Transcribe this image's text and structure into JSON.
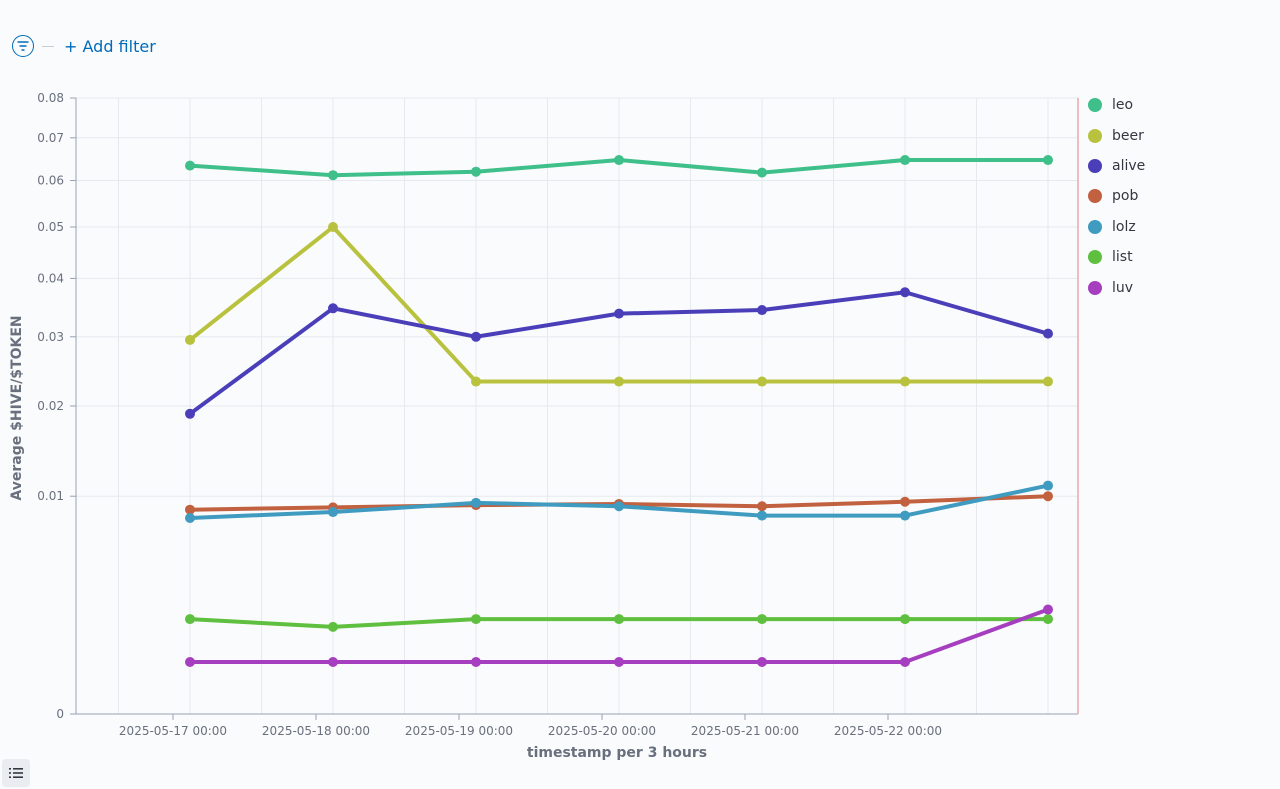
{
  "filter_bar": {
    "add_filter_label": "+ Add filter"
  },
  "icons": {
    "filter": "filter-icon",
    "legend_toggle": "list-icon"
  },
  "chart_data": {
    "type": "line",
    "xlabel": "timestamp per 3 hours",
    "ylabel": "Average $HIVE/$TOKEN",
    "y_scale": "sqrt",
    "ylim": [
      0,
      0.08
    ],
    "y_ticks": [
      0,
      0.01,
      0.02,
      0.03,
      0.04,
      0.05,
      0.06,
      0.07,
      0.08
    ],
    "y_tick_labels": [
      "0",
      "0.01",
      "0.02",
      "0.03",
      "0.04",
      "0.05",
      "0.06",
      "0.07",
      "0.08"
    ],
    "x_tick_labels": [
      "2025-05-17 00:00",
      "2025-05-18 00:00",
      "2025-05-19 00:00",
      "2025-05-20 00:00",
      "2025-05-21 00:00",
      "2025-05-22 00:00"
    ],
    "x": [
      "2025-05-17 00:00",
      "2025-05-18 00:00",
      "2025-05-19 00:00",
      "2025-05-20 00:00",
      "2025-05-21 00:00",
      "2025-05-22 00:00",
      "2025-05-23 00:00"
    ],
    "legend_position": "right",
    "grid": true,
    "series": [
      {
        "name": "leo",
        "color": "#3fbf8a",
        "values": [
          0.0634,
          0.0612,
          0.062,
          0.0647,
          0.0618,
          0.0647,
          0.0647
        ]
      },
      {
        "name": "beer",
        "color": "#b9c23f",
        "values": [
          0.0295,
          0.05,
          0.0233,
          0.0233,
          0.0233,
          0.0233,
          0.0233
        ]
      },
      {
        "name": "alive",
        "color": "#4a3fb8",
        "values": [
          0.019,
          0.0347,
          0.03,
          0.0338,
          0.0344,
          0.0375,
          0.0305
        ]
      },
      {
        "name": "pob",
        "color": "#c2613f",
        "values": [
          0.0088,
          0.009,
          0.0092,
          0.0093,
          0.0091,
          0.0095,
          0.01
        ]
      },
      {
        "name": "lolz",
        "color": "#3f9bbf",
        "values": [
          0.0081,
          0.0086,
          0.0094,
          0.0091,
          0.0083,
          0.0083,
          0.011
        ]
      },
      {
        "name": "list",
        "color": "#5fbf3f",
        "values": [
          0.0019,
          0.0016,
          0.0019,
          0.0019,
          0.0019,
          0.0019,
          0.0019
        ]
      },
      {
        "name": "luv",
        "color": "#a63fbf",
        "values": [
          0.00057,
          0.00057,
          0.00057,
          0.00057,
          0.00057,
          0.00057,
          0.0023
        ]
      }
    ]
  }
}
